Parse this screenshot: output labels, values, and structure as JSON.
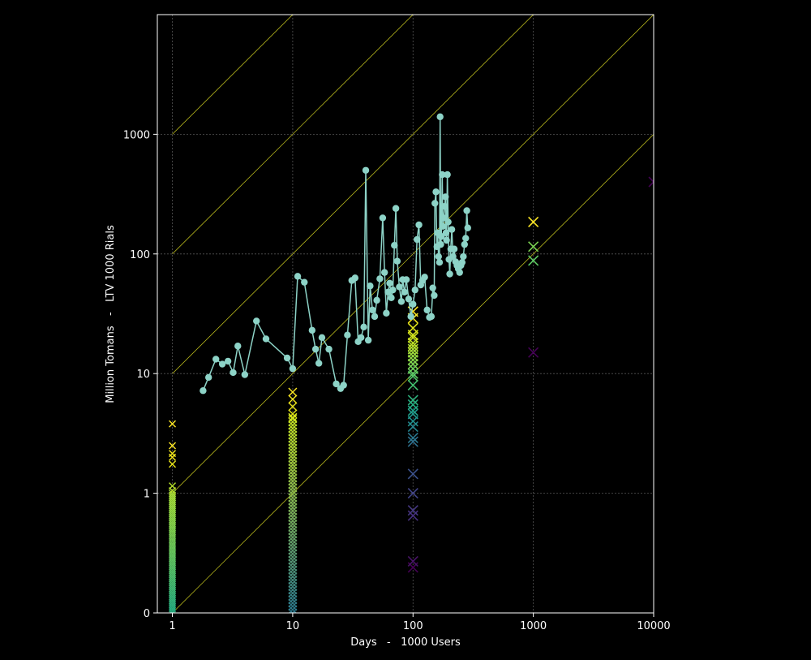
{
  "colors": {
    "background": "#000000",
    "axis": "#ffffff",
    "grid": "#555555",
    "diagonal": "#d0d020",
    "series_line": "#8dd3c7"
  },
  "chart_data": {
    "type": "scatter",
    "title": "",
    "xlabel": "Days   -   1000 Users",
    "ylabel": "Million Tomans   -   LTV 1000 Rials",
    "x_scale": "log",
    "y_scale": "log",
    "xlim": [
      0.75,
      10000
    ],
    "ylim": [
      0.1,
      10000
    ],
    "x_ticks": [
      1,
      10,
      100,
      1000,
      10000
    ],
    "x_tick_labels": [
      "1",
      "10",
      "100",
      "1000",
      "10000"
    ],
    "y_ticks": [
      0.1,
      1,
      10,
      100,
      1000
    ],
    "y_tick_labels": [
      "0",
      "1",
      "10",
      "100",
      "1000"
    ],
    "grid": true,
    "diagonal_reference_lines": [
      10000,
      1000,
      100,
      10,
      1,
      0.1
    ],
    "line_series": {
      "x": [
        1.8,
        2.0,
        2.3,
        2.6,
        2.9,
        3.2,
        3.5,
        4.0,
        5.0,
        6.0,
        9.0,
        10.0,
        11.0,
        12.5,
        14.5,
        15.5,
        16.5,
        17.5,
        20.0,
        23.0,
        25.0,
        26.5,
        28.5,
        31.0,
        33.0,
        35.0,
        37.0,
        39.0,
        40.5,
        42.5,
        44.0,
        46.0,
        48.0,
        50.0,
        53.0,
        56.0,
        58.0,
        60.0,
        62.0,
        64.0,
        66.0,
        68.0,
        70.0,
        72.0,
        74.0,
        77.0,
        80.0,
        82.0,
        85.0,
        88.0,
        92.0,
        96.0,
        100.0,
        104.0,
        108.0,
        112.0,
        116.0,
        120.0,
        125.0,
        131.0,
        137.0,
        142.0,
        146.0,
        150.0,
        152.0,
        155.0,
        158.0,
        160.0,
        163.0,
        166.0,
        168.0,
        170.0,
        172.0,
        175.0,
        177.0,
        180.0,
        183.0,
        186.0,
        188.0,
        190.0,
        193.0,
        196.0,
        199.0,
        202.0,
        206.0,
        210.0,
        215.0,
        220.0,
        226.0,
        232.0,
        238.0,
        244.0,
        250.0,
        256.0,
        262.0,
        268.0,
        274.0,
        280.0,
        285.0
      ],
      "y": [
        7.2,
        9.3,
        13.2,
        12.0,
        12.7,
        10.2,
        17.0,
        9.8,
        27.5,
        19.5,
        13.5,
        11.0,
        65.0,
        58.0,
        23.0,
        16.0,
        12.2,
        20.0,
        16.0,
        8.2,
        7.5,
        8.0,
        21.0,
        60.0,
        63.0,
        18.5,
        20.0,
        24.5,
        500.0,
        19.0,
        54.0,
        34.0,
        30.0,
        41.0,
        62.0,
        200.0,
        70.0,
        32.0,
        48.0,
        57.0,
        43.0,
        50.0,
        118.0,
        240.0,
        87.0,
        53.0,
        40.0,
        61.0,
        48.0,
        61.0,
        42.0,
        30.0,
        38.0,
        50.0,
        132.0,
        175.0,
        55.0,
        60.0,
        64.0,
        34.0,
        29.5,
        30.0,
        52.0,
        45.0,
        265.0,
        330.0,
        115.0,
        150.0,
        95.0,
        85.0,
        1400.0,
        120.0,
        140.0,
        460.0,
        170.0,
        200.0,
        250.0,
        300.0,
        150.0,
        130.0,
        460.0,
        185.0,
        90.0,
        68.0,
        110.0,
        160.0,
        95.0,
        110.0,
        86.0,
        80.0,
        75.0,
        70.0,
        80.0,
        85.0,
        95.0,
        120.0,
        135.0,
        230.0,
        165.0
      ]
    },
    "marker_columns": [
      {
        "x": 1,
        "marker": "x",
        "size": "small",
        "points": [
          {
            "y": 3.8,
            "color": "#fde725"
          },
          {
            "y": 2.5,
            "color": "#fde725"
          },
          {
            "y": 2.15,
            "color": "#f2e51d"
          },
          {
            "y": 2.0,
            "color": "#f2e51d"
          },
          {
            "y": 1.75,
            "color": "#e8e419"
          },
          {
            "y": 1.15,
            "color": "#b5de2b"
          },
          {
            "y": 1.05,
            "color": "#b5de2b"
          }
        ],
        "band": {
          "from": 0.1,
          "to": 1.0,
          "color_top": "#a5db36",
          "color_bottom": "#26ad81"
        }
      },
      {
        "x": 10,
        "marker": "x",
        "size": "medium",
        "points": [
          {
            "y": 7.0,
            "color": "#fde725"
          },
          {
            "y": 6.1,
            "color": "#f2e51d"
          },
          {
            "y": 5.3,
            "color": "#e8e419"
          },
          {
            "y": 4.6,
            "color": "#dfe318"
          },
          {
            "y": 4.3,
            "color": "#d2e21b"
          }
        ],
        "band": {
          "from": 0.1,
          "to": 4.2,
          "color_top": "#c2df23",
          "color_bottom": "#2a788e"
        }
      },
      {
        "x": 100,
        "marker": "x",
        "size": "large",
        "points": [
          {
            "y": 33,
            "color": "#fde725"
          },
          {
            "y": 29,
            "color": "#f2e51d"
          },
          {
            "y": 24,
            "color": "#dfe318"
          },
          {
            "y": 21,
            "color": "#d2e21b"
          },
          {
            "y": 20,
            "color": "#c8e020"
          },
          {
            "y": 18,
            "color": "#bddf26"
          },
          {
            "y": 17,
            "color": "#b5de2b"
          },
          {
            "y": 16,
            "color": "#a8db34"
          },
          {
            "y": 15,
            "color": "#9dd93b"
          },
          {
            "y": 14,
            "color": "#93d741"
          },
          {
            "y": 13,
            "color": "#86d549"
          },
          {
            "y": 12,
            "color": "#7ad151"
          },
          {
            "y": 11,
            "color": "#6ccd5a"
          },
          {
            "y": 10,
            "color": "#5ec962"
          },
          {
            "y": 9.5,
            "color": "#50c46a"
          },
          {
            "y": 8.0,
            "color": "#44bf70"
          },
          {
            "y": 6.0,
            "color": "#2db27d"
          },
          {
            "y": 5.5,
            "color": "#25ac82"
          },
          {
            "y": 4.9,
            "color": "#1fa088"
          },
          {
            "y": 4.6,
            "color": "#1f968b"
          },
          {
            "y": 4.0,
            "color": "#22908d"
          },
          {
            "y": 3.6,
            "color": "#25858e"
          },
          {
            "y": 2.9,
            "color": "#2a788e"
          },
          {
            "y": 2.7,
            "color": "#2e6f8e"
          },
          {
            "y": 1.45,
            "color": "#3b518b"
          },
          {
            "y": 1.0,
            "color": "#414487"
          },
          {
            "y": 0.72,
            "color": "#453882"
          },
          {
            "y": 0.65,
            "color": "#46307e"
          },
          {
            "y": 0.27,
            "color": "#481467"
          },
          {
            "y": 0.24,
            "color": "#440154"
          }
        ]
      },
      {
        "x": 1000,
        "marker": "x",
        "size": "large",
        "points": [
          {
            "y": 185,
            "color": "#fde725"
          },
          {
            "y": 115,
            "color": "#7ad151"
          },
          {
            "y": 88,
            "color": "#5ec962"
          },
          {
            "y": 15,
            "color": "#440154"
          }
        ]
      },
      {
        "x": 10000,
        "marker": "x",
        "size": "large",
        "points": [
          {
            "y": 400,
            "color": "#440154"
          }
        ]
      }
    ]
  }
}
